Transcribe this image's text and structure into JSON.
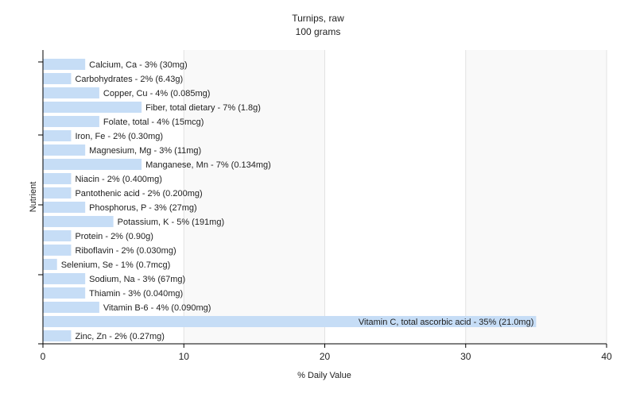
{
  "chart_data": {
    "type": "bar",
    "orientation": "horizontal",
    "title": "Turnips, raw",
    "subtitle": "100 grams",
    "xlabel": "% Daily Value",
    "ylabel": "Nutrient",
    "xlim": [
      0,
      40
    ],
    "xticks": [
      0,
      10,
      20,
      30,
      40
    ],
    "grid": true,
    "bar_color": "#c6ddf6",
    "categories": [
      "Calcium, Ca - 3% (30mg)",
      "Carbohydrates - 2% (6.43g)",
      "Copper, Cu - 4% (0.085mg)",
      "Fiber, total dietary - 7% (1.8g)",
      "Folate, total - 4% (15mcg)",
      "Iron, Fe - 2% (0.30mg)",
      "Magnesium, Mg - 3% (11mg)",
      "Manganese, Mn - 7% (0.134mg)",
      "Niacin - 2% (0.400mg)",
      "Pantothenic acid - 2% (0.200mg)",
      "Phosphorus, P - 3% (27mg)",
      "Potassium, K - 5% (191mg)",
      "Protein - 2% (0.90g)",
      "Riboflavin - 2% (0.030mg)",
      "Selenium, Se - 1% (0.7mcg)",
      "Sodium, Na - 3% (67mg)",
      "Thiamin - 3% (0.040mg)",
      "Vitamin B-6 - 4% (0.090mg)",
      "Vitamin C, total ascorbic acid - 35% (21.0mg)",
      "Zinc, Zn - 2% (0.27mg)"
    ],
    "values": [
      3,
      2,
      4,
      7,
      4,
      2,
      3,
      7,
      2,
      2,
      3,
      5,
      2,
      2,
      1,
      3,
      3,
      4,
      35,
      2
    ]
  }
}
